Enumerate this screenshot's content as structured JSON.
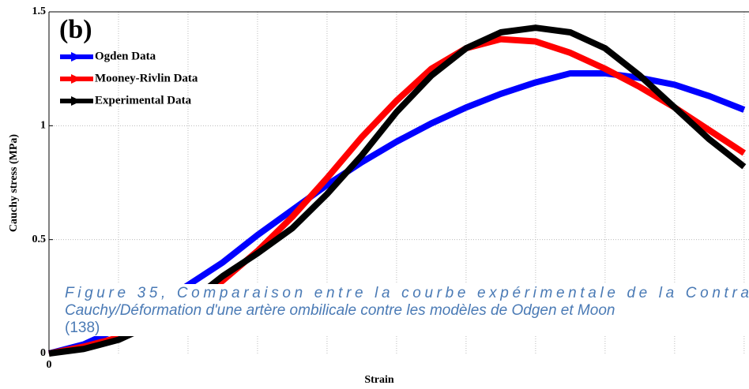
{
  "chart_data": {
    "type": "line",
    "panel_label": "(b)",
    "xlabel": "Strain",
    "ylabel": "Cauchy stress (MPa)",
    "xlim": [
      0,
      1.007
    ],
    "ylim": [
      0,
      1.5
    ],
    "xticks": [
      0
    ],
    "xgrid": [
      0.1,
      0.2,
      0.3,
      0.4,
      0.5,
      0.6,
      0.7,
      0.8,
      0.9,
      1.0
    ],
    "yticks": [
      0,
      0.5,
      1,
      1.5
    ],
    "grid": true,
    "x": [
      0,
      0.05,
      0.1,
      0.15,
      0.2,
      0.25,
      0.3,
      0.35,
      0.4,
      0.45,
      0.5,
      0.55,
      0.6,
      0.65,
      0.7,
      0.75,
      0.8,
      0.85,
      0.9,
      0.95,
      1.0
    ],
    "series": [
      {
        "name": "Ogden Data",
        "color": "#0000ff",
        "values": [
          0,
          0.04,
          0.11,
          0.2,
          0.3,
          0.4,
          0.52,
          0.63,
          0.74,
          0.84,
          0.93,
          1.01,
          1.08,
          1.14,
          1.19,
          1.23,
          1.23,
          1.21,
          1.18,
          1.13,
          1.07
        ]
      },
      {
        "name": "Mooney-Rivlin Data",
        "color": "#ff0000",
        "values": [
          0,
          0.03,
          0.07,
          0.13,
          0.2,
          0.32,
          0.45,
          0.6,
          0.77,
          0.95,
          1.11,
          1.25,
          1.34,
          1.38,
          1.37,
          1.32,
          1.25,
          1.17,
          1.08,
          0.98,
          0.88
        ]
      },
      {
        "name": "Experimental Data",
        "color": "#000000",
        "values": [
          0,
          0.02,
          0.06,
          0.13,
          0.22,
          0.34,
          0.44,
          0.55,
          0.7,
          0.87,
          1.06,
          1.22,
          1.34,
          1.41,
          1.43,
          1.41,
          1.34,
          1.22,
          1.08,
          0.94,
          0.82
        ]
      }
    ]
  },
  "caption": {
    "lines": [
      "Figure 35, Comparaison entre la courbe expérimentale de la Contra",
      "Cauchy/Déformation d'une artère ombilicale contre les modèles de Odgen et Moon",
      "(138)"
    ]
  }
}
